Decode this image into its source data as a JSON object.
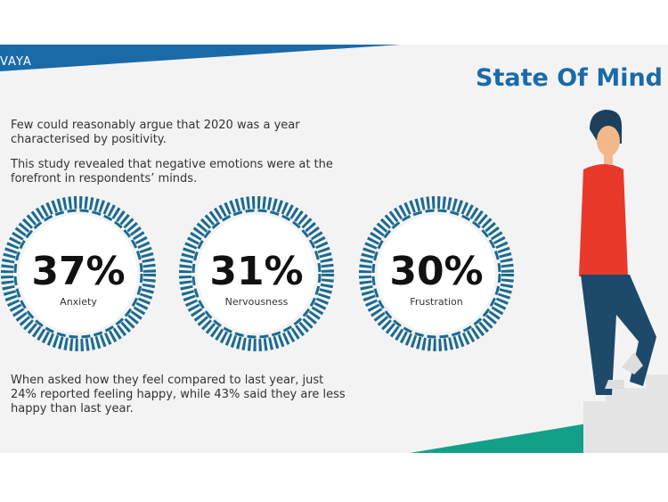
{
  "header": {
    "logo": "VAYA",
    "title": "State Of Mind"
  },
  "intro": [
    "Few could reasonably argue that 2020 was a year characterised by positivity.",
    "This study revealed that negative emotions were at the forefront in respondents’ minds."
  ],
  "stats": [
    {
      "value": "37%",
      "label": "Anxiety"
    },
    {
      "value": "31%",
      "label": "Nervousness"
    },
    {
      "value": "30%",
      "label": "Frustration"
    }
  ],
  "footer": "When asked how they feel compared to last year, just 24% reported feeling happy, while 43% said they are less happy than last year."
}
